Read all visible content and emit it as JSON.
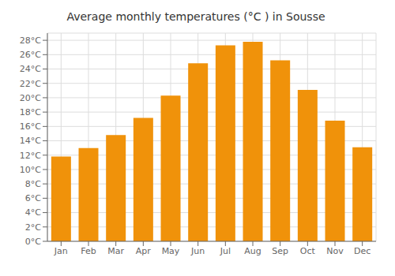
{
  "chart_data": {
    "type": "bar",
    "title": "Average monthly temperatures (°C ) in Sousse",
    "categories": [
      "Jan",
      "Feb",
      "Mar",
      "Apr",
      "May",
      "Jun",
      "Jul",
      "Aug",
      "Sep",
      "Oct",
      "Nov",
      "Dec"
    ],
    "values": [
      11.8,
      13.0,
      14.8,
      17.2,
      20.3,
      24.8,
      27.3,
      27.8,
      25.2,
      21.1,
      16.8,
      13.1
    ],
    "color": "#F0920A",
    "ylim": [
      0,
      29
    ],
    "yticks": [
      {
        "value": 0,
        "label": "0°C"
      },
      {
        "value": 2,
        "label": "2°C"
      },
      {
        "value": 4,
        "label": "4°C"
      },
      {
        "value": 6,
        "label": "6°C"
      },
      {
        "value": 8,
        "label": "8°C"
      },
      {
        "value": 10,
        "label": "10°C"
      },
      {
        "value": 12,
        "label": "12°C"
      },
      {
        "value": 14,
        "label": "14°C"
      },
      {
        "value": 16,
        "label": "16°C"
      },
      {
        "value": 18,
        "label": "18°C"
      },
      {
        "value": 20,
        "label": "20°C"
      },
      {
        "value": 22,
        "label": "22°C"
      },
      {
        "value": 24,
        "label": "24°C"
      },
      {
        "value": 26,
        "label": "26°C"
      },
      {
        "value": 28,
        "label": "28°C"
      }
    ],
    "grid": true
  }
}
